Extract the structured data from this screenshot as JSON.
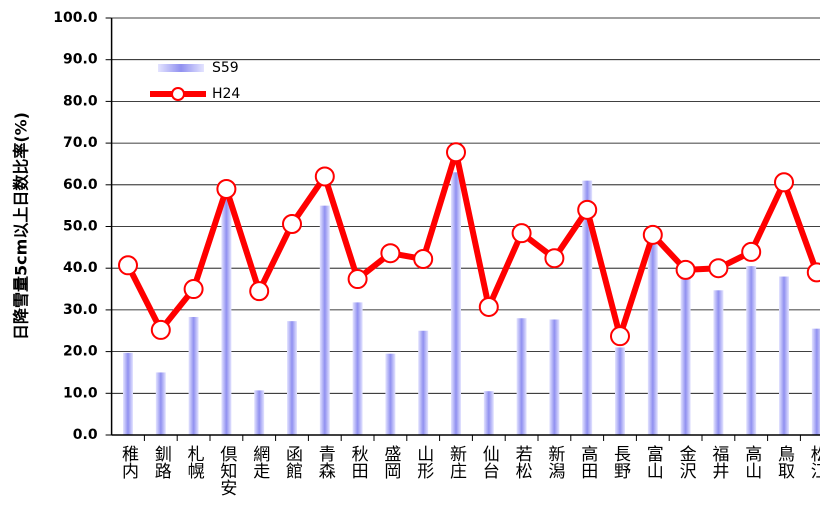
{
  "chart_data": {
    "type": "bar_line",
    "y_label": "日降雪量5cm以上日数比率(%)",
    "categories": [
      "稚内",
      "釧路",
      "札幌",
      "倶知安",
      "網走",
      "函館",
      "青森",
      "秋田",
      "盛岡",
      "山形",
      "新庄",
      "仙台",
      "若松",
      "新潟",
      "高田",
      "長野",
      "富山",
      "金沢",
      "福井",
      "高山",
      "鳥取",
      "松江"
    ],
    "series": [
      {
        "name": "S59",
        "color": "#9090f0",
        "kind": "bar",
        "values": [
          19.7,
          15,
          28.3,
          57,
          10.7,
          27.3,
          55,
          31.8,
          19.5,
          25,
          63,
          10.5,
          28,
          27.7,
          61,
          21,
          46,
          38,
          34.7,
          40.5,
          38,
          25.5
        ]
      },
      {
        "name": "H24",
        "color": "#ff0000",
        "kind": "line",
        "values": [
          40.7,
          25.2,
          35,
          59,
          34.5,
          50.6,
          62,
          37.4,
          43.6,
          42.2,
          67.8,
          30.7,
          48.4,
          42.4,
          54,
          23.7,
          48,
          39.6,
          40,
          43.9,
          60.6,
          39
        ]
      }
    ],
    "ylim": [
      0,
      100
    ],
    "yticks": [
      {
        "value": 0,
        "label": "0.0"
      },
      {
        "value": 10,
        "label": "10.0"
      },
      {
        "value": 20,
        "label": "20.0"
      },
      {
        "value": 30,
        "label": "30.0"
      },
      {
        "value": 40,
        "label": "40.0"
      },
      {
        "value": 50,
        "label": "50.0"
      },
      {
        "value": 60,
        "label": "60.0"
      },
      {
        "value": 70,
        "label": "70.0"
      },
      {
        "value": 80,
        "label": "80.0"
      },
      {
        "value": 90,
        "label": "90.0"
      },
      {
        "value": 100,
        "label": "100.0"
      }
    ],
    "grid": true
  }
}
